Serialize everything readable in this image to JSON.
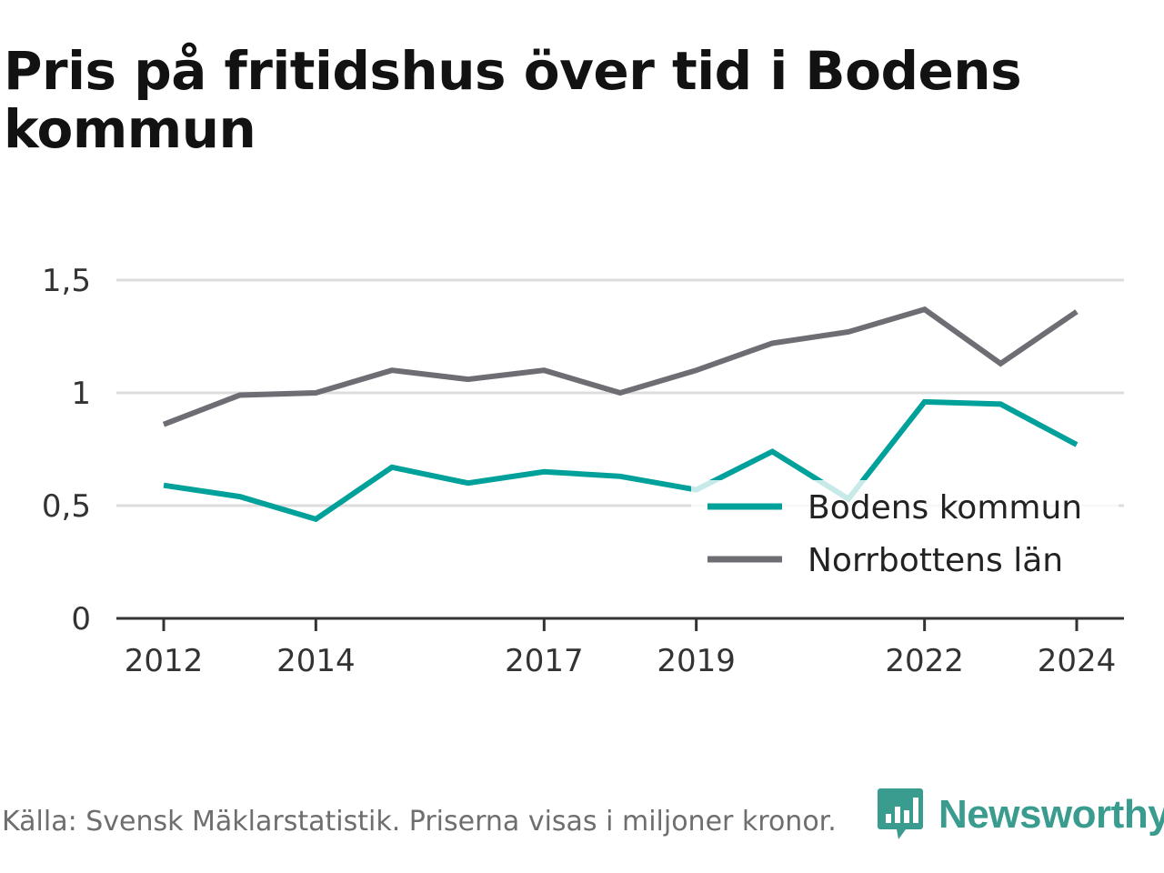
{
  "title": "Pris på fritidshus över tid i Bodens kommun",
  "footer": {
    "source": "Källa: Svensk Mäklarstatistik. Priserna visas i miljoner kronor.",
    "brand": "Newsworthy",
    "brand_icon": "bar-chart-speech-bubble-icon",
    "brand_color": "#3a9c8e"
  },
  "chart_data": {
    "type": "line",
    "title": "Pris på fritidshus över tid i Bodens kommun",
    "xlabel": "",
    "ylabel": "",
    "x": [
      2012,
      2013,
      2014,
      2015,
      2016,
      2017,
      2018,
      2019,
      2020,
      2021,
      2022,
      2023,
      2024
    ],
    "x_ticks": [
      "2012",
      "2014",
      "2017",
      "2019",
      "2022",
      "2024"
    ],
    "y_ticks": [
      "0",
      "0,5",
      "1",
      "1,5"
    ],
    "ylim": [
      0,
      1.5
    ],
    "grid": true,
    "legend_position": "bottom-right",
    "series": [
      {
        "name": "Bodens kommun",
        "color": "#00a19a",
        "values": [
          0.59,
          0.54,
          0.44,
          0.67,
          0.6,
          0.65,
          0.63,
          0.57,
          0.74,
          0.53,
          0.96,
          0.95,
          0.77
        ]
      },
      {
        "name": "Norrbottens län",
        "color": "#6e6d73",
        "values": [
          0.86,
          0.99,
          1.0,
          1.1,
          1.06,
          1.1,
          1.0,
          1.1,
          1.22,
          1.27,
          1.37,
          1.13,
          1.36
        ]
      }
    ]
  }
}
